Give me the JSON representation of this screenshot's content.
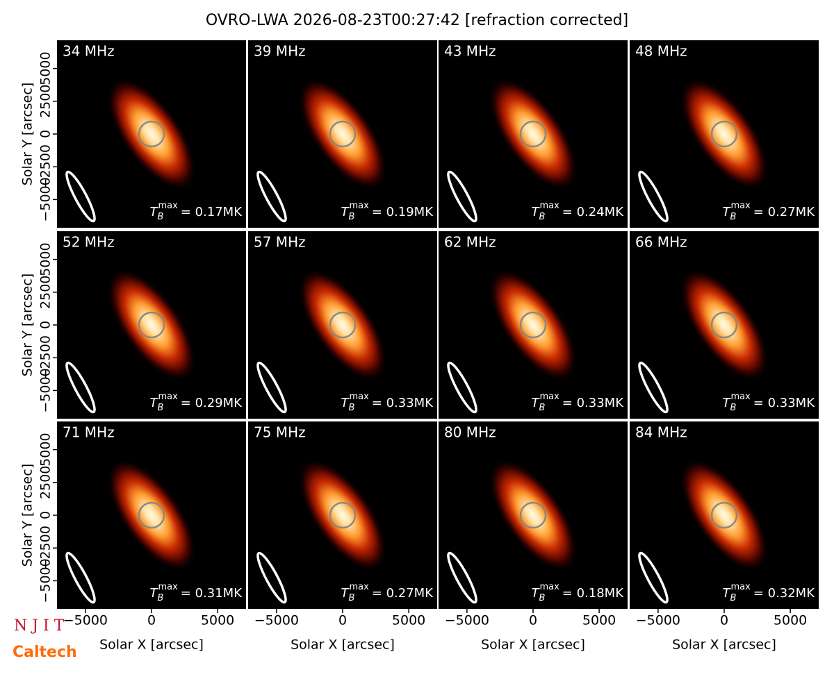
{
  "title": "OVRO-LWA 2026-08-23T00:27:42 [refraction corrected]",
  "logos": [
    "N J I T",
    "Caltech"
  ],
  "tb_symbol": {
    "base": "T",
    "sub": "B",
    "sup": "max"
  },
  "chart_data": [
    {
      "type": "heatmap",
      "label": "34 MHz",
      "tb_value": "= 0.17MK",
      "xlim": [
        -7150,
        7150
      ],
      "ylim": [
        -7150,
        7150
      ],
      "ylabel": "Solar Y [arcsec]",
      "yticks": [
        {
          "value": -5000,
          "label": "−5000"
        },
        {
          "value": -2500,
          "label": "−2500"
        },
        0,
        2500,
        5000
      ]
    },
    {
      "type": "heatmap",
      "label": "39 MHz",
      "tb_value": "= 0.19MK",
      "xlim": [
        -7150,
        7150
      ],
      "ylim": [
        -7150,
        7150
      ]
    },
    {
      "type": "heatmap",
      "label": "43 MHz",
      "tb_value": "= 0.24MK",
      "xlim": [
        -7150,
        7150
      ],
      "ylim": [
        -7150,
        7150
      ]
    },
    {
      "type": "heatmap",
      "label": "48 MHz",
      "tb_value": "= 0.27MK",
      "xlim": [
        -7150,
        7150
      ],
      "ylim": [
        -7150,
        7150
      ]
    },
    {
      "type": "heatmap",
      "label": "52 MHz",
      "tb_value": "= 0.29MK",
      "xlim": [
        -7150,
        7150
      ],
      "ylim": [
        -7150,
        7150
      ],
      "ylabel": "Solar Y [arcsec]",
      "yticks": [
        {
          "value": -5000,
          "label": "−5000"
        },
        {
          "value": -2500,
          "label": "−2500"
        },
        0,
        2500,
        5000
      ]
    },
    {
      "type": "heatmap",
      "label": "57 MHz",
      "tb_value": "= 0.33MK",
      "xlim": [
        -7150,
        7150
      ],
      "ylim": [
        -7150,
        7150
      ]
    },
    {
      "type": "heatmap",
      "label": "62 MHz",
      "tb_value": "= 0.33MK",
      "xlim": [
        -7150,
        7150
      ],
      "ylim": [
        -7150,
        7150
      ]
    },
    {
      "type": "heatmap",
      "label": "66 MHz",
      "tb_value": "= 0.33MK",
      "xlim": [
        -7150,
        7150
      ],
      "ylim": [
        -7150,
        7150
      ]
    },
    {
      "type": "heatmap",
      "label": "71 MHz",
      "tb_value": "= 0.31MK",
      "xlim": [
        -7150,
        7150
      ],
      "ylim": [
        -7150,
        7150
      ],
      "ylabel": "Solar Y [arcsec]",
      "yticks": [
        {
          "value": -5000,
          "label": "−5000"
        },
        {
          "value": -2500,
          "label": "−2500"
        },
        0,
        2500,
        5000
      ],
      "xlabel": "Solar X [arcsec]",
      "xticks": [
        {
          "value": -5000,
          "label": "−5000"
        },
        0,
        5000
      ]
    },
    {
      "type": "heatmap",
      "label": "75 MHz",
      "tb_value": "= 0.27MK",
      "xlim": [
        -7150,
        7150
      ],
      "ylim": [
        -7150,
        7150
      ],
      "xlabel": "Solar X [arcsec]",
      "xticks": [
        {
          "value": -5000,
          "label": "−5000"
        },
        0,
        5000
      ]
    },
    {
      "type": "heatmap",
      "label": "80 MHz",
      "tb_value": "= 0.18MK",
      "xlim": [
        -7150,
        7150
      ],
      "ylim": [
        -7150,
        7150
      ],
      "xlabel": "Solar X [arcsec]",
      "xticks": [
        {
          "value": -5000,
          "label": "−5000"
        },
        0,
        5000
      ]
    },
    {
      "type": "heatmap",
      "label": "84 MHz",
      "tb_value": "= 0.32MK",
      "xlim": [
        -7150,
        7150
      ],
      "ylim": [
        -7150,
        7150
      ],
      "xlabel": "Solar X [arcsec]",
      "xticks": [
        {
          "value": -5000,
          "label": "−5000"
        },
        0,
        5000
      ]
    }
  ]
}
